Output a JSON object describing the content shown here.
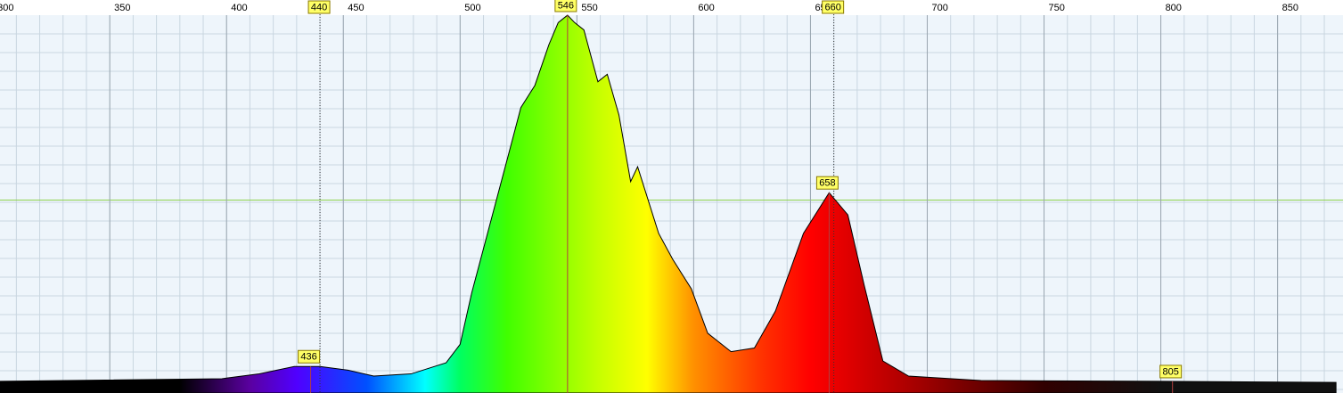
{
  "chart_data": {
    "type": "area",
    "x": [
      303,
      398,
      414,
      429,
      440,
      452,
      463,
      479,
      494,
      500,
      505,
      513,
      521,
      526,
      532,
      538,
      542,
      546,
      549,
      553,
      559,
      563,
      568,
      573,
      576,
      585,
      591,
      599,
      606,
      616,
      626,
      635,
      647,
      658,
      666,
      673,
      681,
      692,
      723,
      799,
      875
    ],
    "values": [
      1,
      1.7,
      3,
      5,
      5,
      4,
      2.4,
      3,
      6,
      11,
      25,
      44,
      63,
      75,
      81,
      92,
      98,
      100,
      98,
      96,
      82,
      84,
      73,
      55,
      59,
      41,
      34,
      26,
      14,
      9,
      10,
      20,
      41,
      52,
      46,
      27,
      6.5,
      2.4,
      1.2,
      1,
      0.7
    ],
    "xlim": [
      303,
      878
    ],
    "ylim": [
      0,
      100
    ],
    "xticks": [
      300,
      350,
      400,
      450,
      500,
      550,
      600,
      650,
      700,
      750,
      800,
      850
    ],
    "markers_top": [
      440,
      660
    ],
    "markers_bottom": [
      436,
      546,
      658,
      805
    ],
    "grid": true
  }
}
